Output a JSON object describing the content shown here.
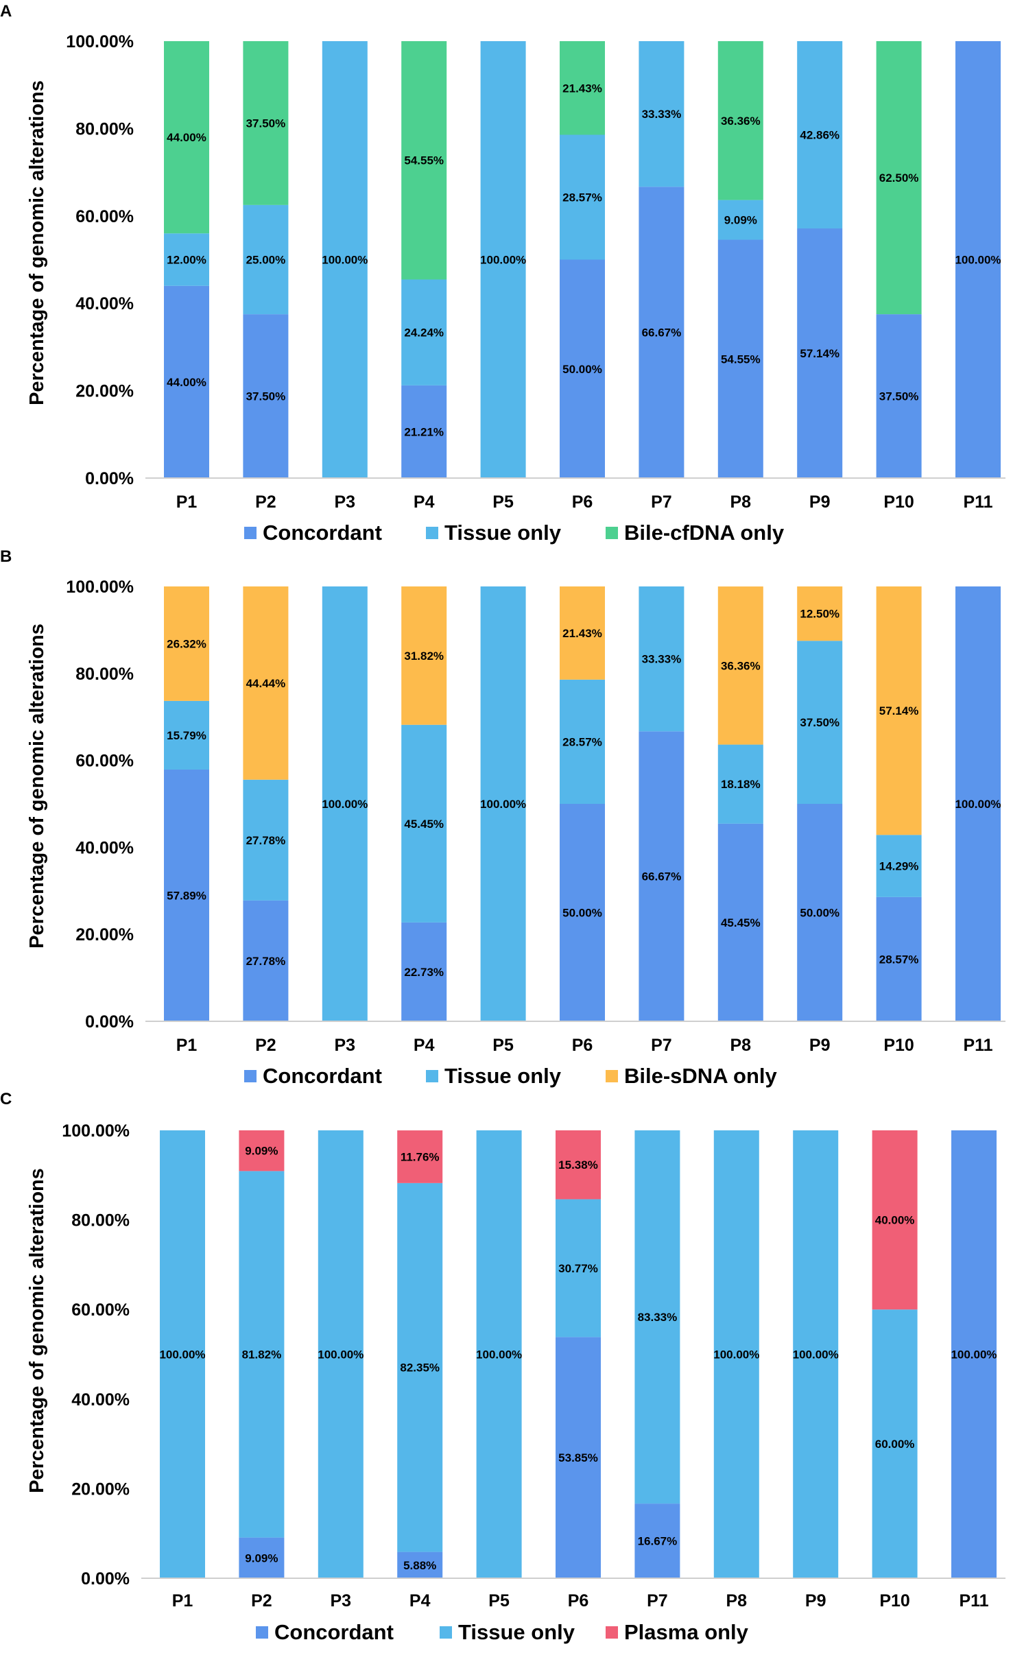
{
  "colors": {
    "concordant": "#5b95ec",
    "tissue": "#55b7ea",
    "bile_cfdna": "#4dd090",
    "bile_sdna": "#fdbb4c",
    "plasma": "#f05f76"
  },
  "chart_data": [
    {
      "panel": "A",
      "type": "bar",
      "stacked": true,
      "ylabel": "Percentage of genomic alterations",
      "xlabel": "",
      "ylim": [
        0,
        100
      ],
      "yticks": [
        "0.00%",
        "20.00%",
        "40.00%",
        "60.00%",
        "80.00%",
        "100.00%"
      ],
      "legend_position": "bottom",
      "categories": [
        "P1",
        "P2",
        "P3",
        "P4",
        "P5",
        "P6",
        "P7",
        "P8",
        "P9",
        "P10",
        "P11"
      ],
      "series": [
        {
          "name": "Concordant",
          "color": "#5b95ec",
          "values": [
            44.0,
            37.5,
            0,
            21.21,
            0,
            50.0,
            66.67,
            54.55,
            57.14,
            37.5,
            100.0
          ],
          "labels": [
            "44.00%",
            "37.50%",
            "",
            "21.21%",
            "",
            "50.00%",
            "66.67%",
            "54.55%",
            "57.14%",
            "37.50%",
            "100.00%"
          ]
        },
        {
          "name": "Tissue only",
          "color": "#55b7ea",
          "values": [
            12.0,
            25.0,
            100.0,
            24.24,
            100.0,
            28.57,
            33.33,
            9.09,
            42.86,
            0,
            0
          ],
          "labels": [
            "12.00%",
            "25.00%",
            "100.00%",
            "24.24%",
            "100.00%",
            "28.57%",
            "33.33%",
            "9.09%",
            "42.86%",
            "",
            ""
          ]
        },
        {
          "name": "Bile-cfDNA only",
          "color": "#4dd090",
          "values": [
            44.0,
            37.5,
            0,
            54.55,
            0,
            21.43,
            0,
            36.36,
            0,
            62.5,
            0
          ],
          "labels": [
            "44.00%",
            "37.50%",
            "",
            "54.55%",
            "",
            "21.43%",
            "",
            "36.36%",
            "",
            "62.50%",
            ""
          ]
        }
      ]
    },
    {
      "panel": "B",
      "type": "bar",
      "stacked": true,
      "ylabel": "Percentage of genomic alterations",
      "xlabel": "",
      "ylim": [
        0,
        100
      ],
      "yticks": [
        "0.00%",
        "20.00%",
        "40.00%",
        "60.00%",
        "80.00%",
        "100.00%"
      ],
      "legend_position": "bottom",
      "categories": [
        "P1",
        "P2",
        "P3",
        "P4",
        "P5",
        "P6",
        "P7",
        "P8",
        "P9",
        "P10",
        "P11"
      ],
      "series": [
        {
          "name": "Concordant",
          "color": "#5b95ec",
          "values": [
            57.89,
            27.78,
            0,
            22.73,
            0,
            50.0,
            66.67,
            45.45,
            50.0,
            28.57,
            100.0
          ],
          "labels": [
            "57.89%",
            "27.78%",
            "",
            "22.73%",
            "",
            "50.00%",
            "66.67%",
            "45.45%",
            "50.00%",
            "28.57%",
            "100.00%"
          ]
        },
        {
          "name": "Tissue only",
          "color": "#55b7ea",
          "values": [
            15.79,
            27.78,
            100.0,
            45.45,
            100.0,
            28.57,
            33.33,
            18.18,
            37.5,
            14.29,
            0
          ],
          "labels": [
            "15.79%",
            "27.78%",
            "100.00%",
            "45.45%",
            "100.00%",
            "28.57%",
            "33.33%",
            "18.18%",
            "37.50%",
            "14.29%",
            ""
          ]
        },
        {
          "name": "Bile-sDNA only",
          "color": "#fdbb4c",
          "values": [
            26.32,
            44.44,
            0,
            31.82,
            0,
            21.43,
            0,
            36.36,
            12.5,
            57.14,
            0
          ],
          "labels": [
            "26.32%",
            "44.44%",
            "",
            "31.82%",
            "",
            "21.43%",
            "",
            "36.36%",
            "12.50%",
            "57.14%",
            ""
          ]
        }
      ]
    },
    {
      "panel": "C",
      "type": "bar",
      "stacked": true,
      "ylabel": "Percentage of genomic alterations",
      "xlabel": "",
      "ylim": [
        0,
        100
      ],
      "yticks": [
        "0.00%",
        "20.00%",
        "40.00%",
        "60.00%",
        "80.00%",
        "100.00%"
      ],
      "legend_position": "bottom",
      "categories": [
        "P1",
        "P2",
        "P3",
        "P4",
        "P5",
        "P6",
        "P7",
        "P8",
        "P9",
        "P10",
        "P11"
      ],
      "series": [
        {
          "name": "Concordant",
          "color": "#5b95ec",
          "values": [
            0,
            9.09,
            0,
            5.88,
            0,
            53.85,
            16.67,
            0,
            0,
            0,
            100.0
          ],
          "labels": [
            "",
            "9.09%",
            "",
            "5.88%",
            "",
            "53.85%",
            "16.67%",
            "",
            "",
            "",
            "100.00%"
          ]
        },
        {
          "name": "Tissue only",
          "color": "#55b7ea",
          "values": [
            100.0,
            81.82,
            100.0,
            82.35,
            100.0,
            30.77,
            83.33,
            100.0,
            100.0,
            60.0,
            0
          ],
          "labels": [
            "100.00%",
            "81.82%",
            "100.00%",
            "82.35%",
            "100.00%",
            "30.77%",
            "83.33%",
            "100.00%",
            "100.00%",
            "60.00%",
            ""
          ]
        },
        {
          "name": "Plasma only",
          "color": "#f05f76",
          "values": [
            0,
            9.09,
            0,
            11.76,
            0,
            15.38,
            0,
            0,
            0,
            40.0,
            0
          ],
          "labels": [
            "",
            "9.09%",
            "",
            "11.76%",
            "",
            "15.38%",
            "",
            "",
            "",
            "40.00%",
            ""
          ]
        }
      ]
    }
  ]
}
